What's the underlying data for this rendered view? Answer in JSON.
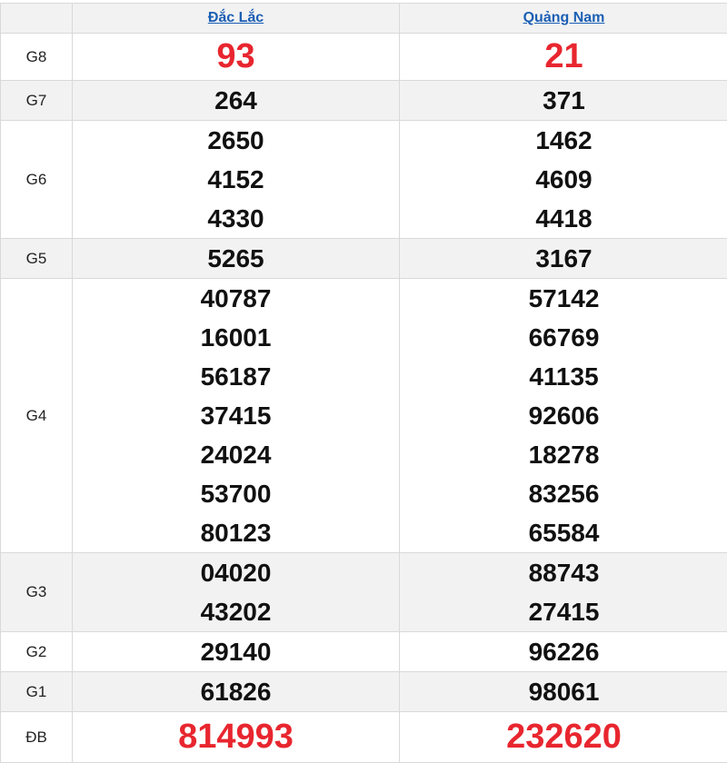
{
  "header": {
    "provinces": [
      "Đắc Lắc",
      "Quảng Nam"
    ]
  },
  "colors": {
    "special": "#e8262f",
    "link": "#1a5fb4"
  },
  "prizes": [
    {
      "label": "G8",
      "values": [
        [
          "93"
        ],
        [
          "21"
        ]
      ],
      "highlight": true
    },
    {
      "label": "G7",
      "values": [
        [
          "264"
        ],
        [
          "371"
        ]
      ]
    },
    {
      "label": "G6",
      "values": [
        [
          "2650",
          "4152",
          "4330"
        ],
        [
          "1462",
          "4609",
          "4418"
        ]
      ]
    },
    {
      "label": "G5",
      "values": [
        [
          "5265"
        ],
        [
          "3167"
        ]
      ]
    },
    {
      "label": "G4",
      "values": [
        [
          "40787",
          "16001",
          "56187",
          "37415",
          "24024",
          "53700",
          "80123"
        ],
        [
          "57142",
          "66769",
          "41135",
          "92606",
          "18278",
          "83256",
          "65584"
        ]
      ]
    },
    {
      "label": "G3",
      "values": [
        [
          "04020",
          "43202"
        ],
        [
          "88743",
          "27415"
        ]
      ]
    },
    {
      "label": "G2",
      "values": [
        [
          "29140"
        ],
        [
          "96226"
        ]
      ]
    },
    {
      "label": "G1",
      "values": [
        [
          "61826"
        ],
        [
          "98061"
        ]
      ]
    },
    {
      "label": "ĐB",
      "values": [
        [
          "814993"
        ],
        [
          "232620"
        ]
      ],
      "highlight": true
    }
  ]
}
